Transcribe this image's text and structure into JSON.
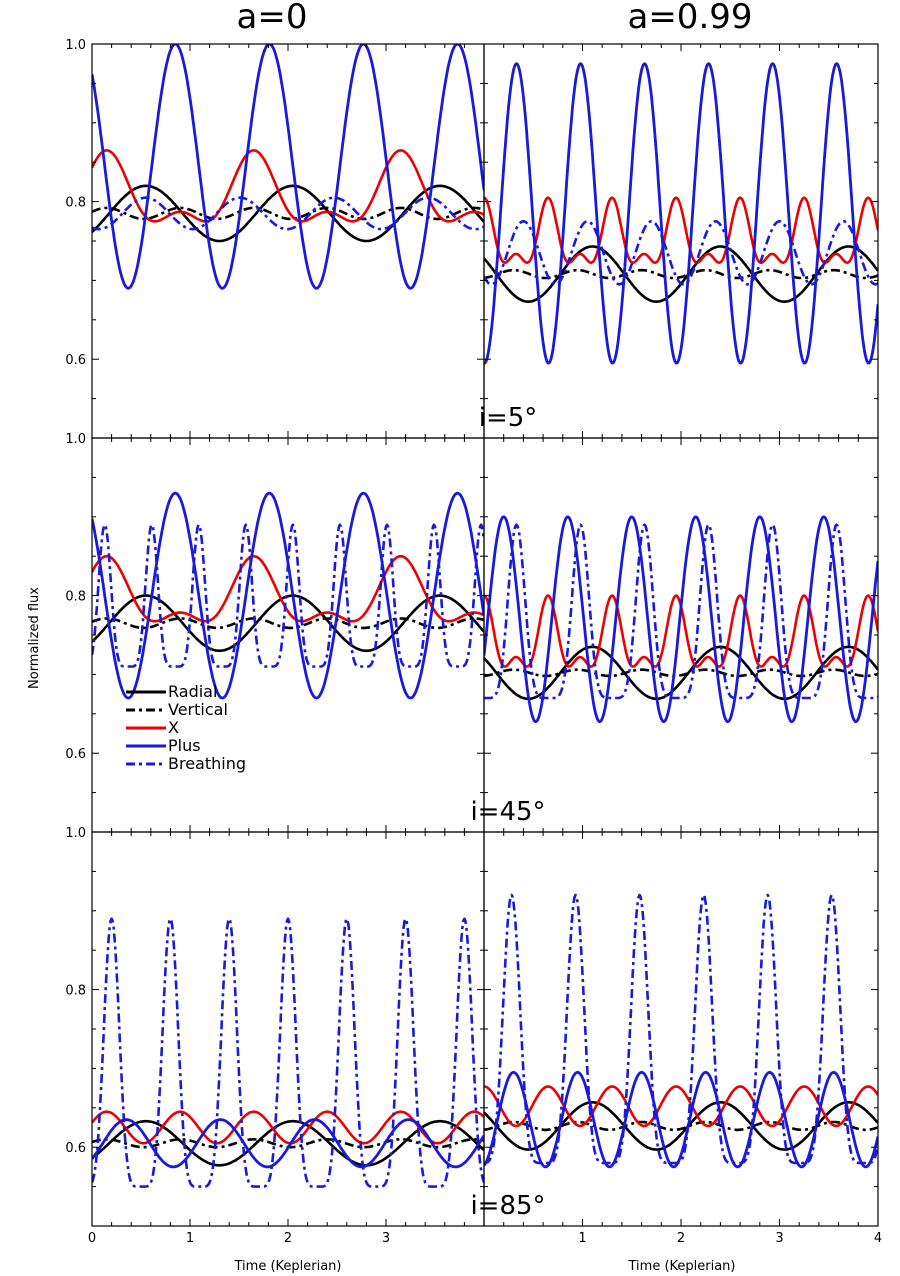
{
  "chart_data": {
    "type": "line",
    "ylabel": "Normalized flux",
    "xlabel": "Time (Keplerian)",
    "ylim": [
      0.5,
      1.0
    ],
    "yticks": [
      "0.6",
      "0.8",
      "1.0"
    ],
    "columns": [
      {
        "title": "a=0",
        "xlim": [
          0,
          4
        ],
        "xticks": [
          "0",
          "1",
          "2",
          "3"
        ]
      },
      {
        "title": "a=0.99",
        "xlim": [
          0,
          4
        ],
        "xticks": [
          "1",
          "2",
          "3",
          "4"
        ]
      }
    ],
    "rows": [
      {
        "label": "i=5°"
      },
      {
        "label": "i=45°"
      },
      {
        "label": "i=85°"
      }
    ],
    "legend": {
      "placement": "middle-left panel, lower-left",
      "entries": [
        {
          "name": "Radial",
          "color": "#000000",
          "dash": "solid"
        },
        {
          "name": "Vertical",
          "color": "#000000",
          "dash": "dashdot"
        },
        {
          "name": "X",
          "color": "#ee0000",
          "dash": "solid"
        },
        {
          "name": "Plus",
          "color": "#1a1adc",
          "dash": "solid"
        },
        {
          "name": "Breathing",
          "color": "#1a1adc",
          "dash": "dashdot"
        }
      ]
    },
    "colors": {
      "radial": "#000000",
      "vertical": "#000000",
      "x": "#ee0000",
      "plus": "#1a1adc",
      "breathing": "#1a1adc"
    },
    "panels": [
      {
        "row": 0,
        "col": 0,
        "series": {
          "radial": {
            "mean": 0.785,
            "amp": 0.035,
            "period": 1.5,
            "peak": 0.55
          },
          "vertical": {
            "mean": 0.785,
            "amp": 0.007,
            "period": 0.75,
            "peak": 0.15
          },
          "x": {
            "mean": 0.805,
            "amp": 0.06,
            "period": 1.5,
            "peak": 0.15,
            "shape": "double"
          },
          "plus": {
            "mean": 0.845,
            "amp": 0.155,
            "period": 0.96,
            "peak": 0.85
          },
          "breathing": {
            "mean": 0.785,
            "amp": 0.02,
            "period": 0.96,
            "peak": 0.55
          }
        }
      },
      {
        "row": 0,
        "col": 1,
        "series": {
          "radial": {
            "mean": 0.708,
            "amp": 0.035,
            "period": 1.3,
            "peak": 1.1
          },
          "vertical": {
            "mean": 0.708,
            "amp": 0.005,
            "period": 0.65,
            "peak": 0.3
          },
          "x": {
            "mean": 0.75,
            "amp": 0.055,
            "period": 0.65,
            "peak": 0.0,
            "shape": "double"
          },
          "plus": {
            "mean": 0.785,
            "amp": 0.19,
            "period": 0.65,
            "peak": 0.33
          },
          "breathing": {
            "mean": 0.735,
            "amp": 0.04,
            "period": 0.65,
            "peak": 0.4
          }
        }
      },
      {
        "row": 1,
        "col": 0,
        "series": {
          "radial": {
            "mean": 0.765,
            "amp": 0.035,
            "period": 1.5,
            "peak": 0.55
          },
          "vertical": {
            "mean": 0.765,
            "amp": 0.006,
            "period": 0.75,
            "peak": 0.15
          },
          "x": {
            "mean": 0.795,
            "amp": 0.055,
            "period": 1.5,
            "peak": 0.15,
            "shape": "double"
          },
          "plus": {
            "mean": 0.8,
            "amp": 0.13,
            "period": 0.96,
            "peak": 0.85
          },
          "breathing": {
            "mean": 0.8,
            "amp": 0.09,
            "period": 0.48,
            "peak": 0.13,
            "shape": "spike"
          }
        }
      },
      {
        "row": 1,
        "col": 1,
        "series": {
          "radial": {
            "mean": 0.702,
            "amp": 0.033,
            "period": 1.3,
            "peak": 1.1
          },
          "vertical": {
            "mean": 0.702,
            "amp": 0.004,
            "period": 0.65,
            "peak": 0.3
          },
          "x": {
            "mean": 0.74,
            "amp": 0.06,
            "period": 0.65,
            "peak": 0.0,
            "shape": "double"
          },
          "plus": {
            "mean": 0.77,
            "amp": 0.13,
            "period": 0.65,
            "peak": 0.2
          },
          "breathing": {
            "mean": 0.78,
            "amp": 0.11,
            "period": 0.65,
            "peak": 0.33,
            "shape": "spike"
          }
        }
      },
      {
        "row": 2,
        "col": 0,
        "series": {
          "radial": {
            "mean": 0.605,
            "amp": 0.028,
            "period": 1.5,
            "peak": 0.55
          },
          "vertical": {
            "mean": 0.605,
            "amp": 0.005,
            "period": 0.75,
            "peak": 0.15
          },
          "x": {
            "mean": 0.625,
            "amp": 0.02,
            "period": 0.75,
            "peak": 0.15
          },
          "plus": {
            "mean": 0.605,
            "amp": 0.03,
            "period": 0.96,
            "peak": 0.35
          },
          "breathing": {
            "mean": 0.72,
            "amp": 0.17,
            "period": 0.6,
            "peak": 0.2,
            "shape": "spike"
          }
        }
      },
      {
        "row": 2,
        "col": 1,
        "series": {
          "radial": {
            "mean": 0.627,
            "amp": 0.03,
            "period": 1.3,
            "peak": 1.1
          },
          "vertical": {
            "mean": 0.627,
            "amp": 0.005,
            "period": 0.65,
            "peak": 0.3
          },
          "x": {
            "mean": 0.652,
            "amp": 0.025,
            "period": 0.65,
            "peak": 0.0
          },
          "plus": {
            "mean": 0.635,
            "amp": 0.06,
            "period": 0.65,
            "peak": 0.3
          },
          "breathing": {
            "mean": 0.75,
            "amp": 0.17,
            "period": 0.65,
            "peak": 0.28,
            "shape": "spike"
          }
        }
      }
    ]
  }
}
